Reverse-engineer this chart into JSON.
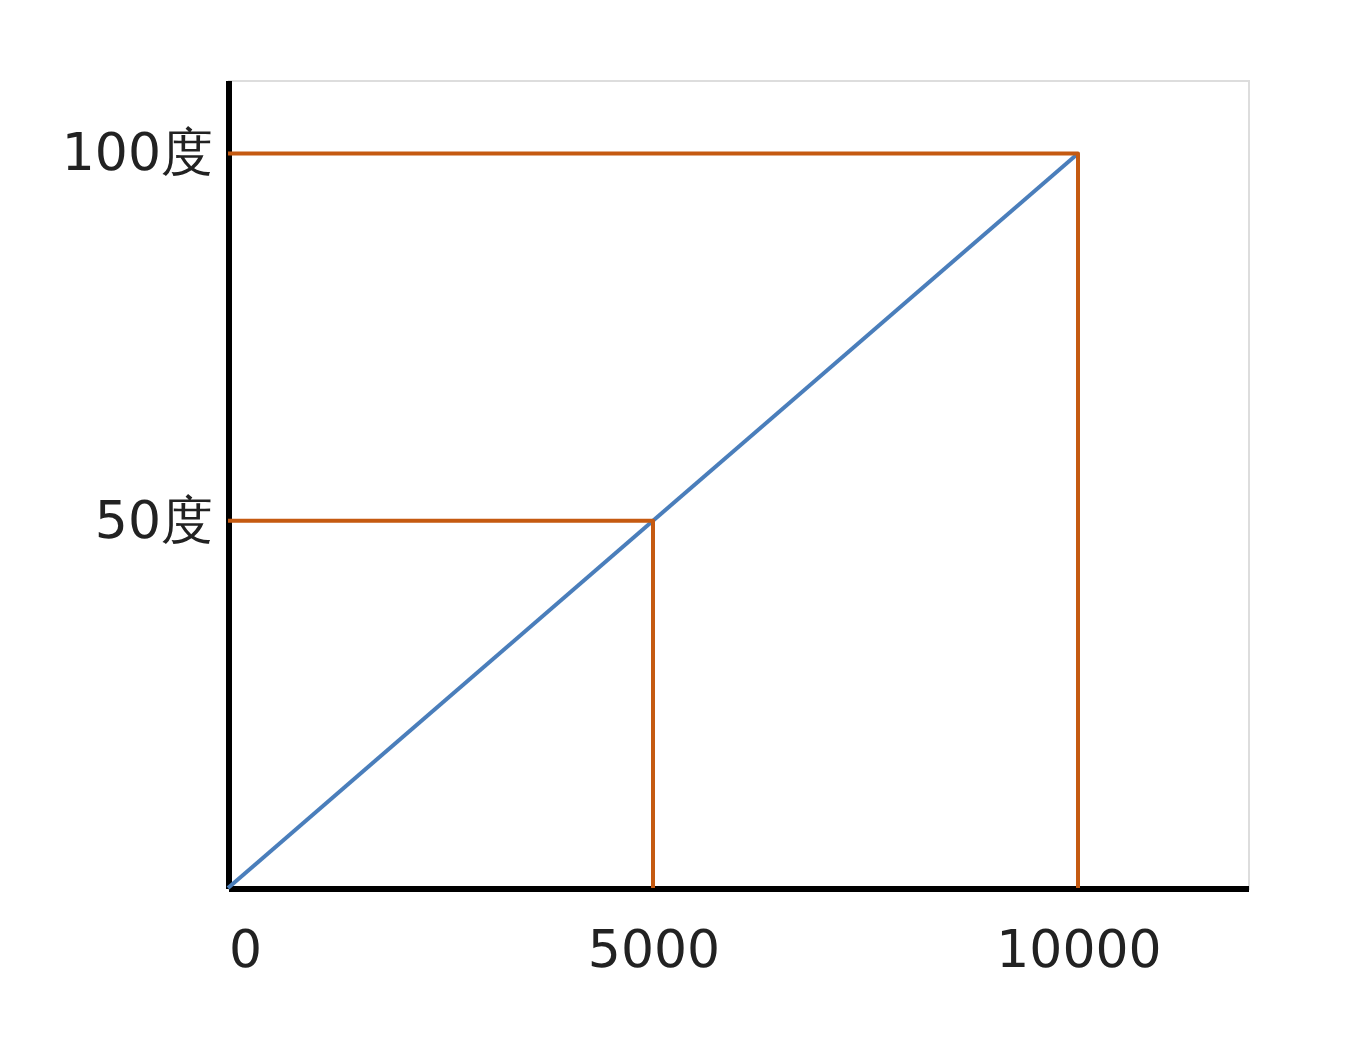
{
  "chart_data": {
    "type": "line",
    "xlim": [
      0,
      12000
    ],
    "ylim": [
      0,
      110
    ],
    "xticks": [
      0,
      5000,
      10000
    ],
    "yticks": [
      {
        "value": 50,
        "label": "50度"
      },
      {
        "value": 100,
        "label": "100度"
      }
    ],
    "grid": false,
    "marker": "none",
    "line_style": "solid",
    "series": [
      {
        "color": "#4a7ebb",
        "x": [
          0,
          10000
        ],
        "values": [
          0,
          100
        ]
      },
      {
        "color": "#c55a11",
        "x": [
          0,
          5000,
          5000
        ],
        "values": [
          50,
          50,
          0
        ]
      },
      {
        "color": "#c55a11",
        "x": [
          0,
          10000,
          10000
        ],
        "values": [
          100,
          100,
          0
        ]
      }
    ]
  }
}
